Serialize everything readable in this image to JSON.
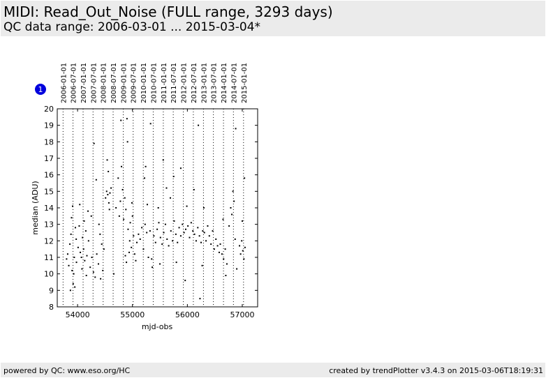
{
  "header": {
    "title": "MIDI: Read_Out_Noise (FULL range, 3293 days)",
    "subtitle": "QC data range: 2006-03-01 ... 2015-03-04*"
  },
  "footer": {
    "left": "powered by QC: www.eso.org/HC",
    "right": "created by trendPlotter v3.4.3 on 2015-03-06T18:19:31"
  },
  "chart_data": {
    "type": "scatter",
    "xlabel": "mjd-obs",
    "ylabel": "median (ADU)",
    "xlim": [
      53630,
      57280
    ],
    "ylim": [
      8,
      20
    ],
    "xticks": [
      54000,
      55000,
      56000,
      57000
    ],
    "yticks": [
      8,
      9,
      10,
      11,
      12,
      13,
      14,
      15,
      16,
      17,
      18,
      19,
      20
    ],
    "marker_badge": "1",
    "date_ticks": [
      {
        "label": "2006-01-01",
        "mjd": 53736
      },
      {
        "label": "2006-07-01",
        "mjd": 53917
      },
      {
        "label": "2007-01-01",
        "mjd": 54101
      },
      {
        "label": "2007-07-01",
        "mjd": 54282
      },
      {
        "label": "2008-01-01",
        "mjd": 54466
      },
      {
        "label": "2008-07-01",
        "mjd": 54648
      },
      {
        "label": "2009-01-01",
        "mjd": 54832
      },
      {
        "label": "2009-07-01",
        "mjd": 55013
      },
      {
        "label": "2010-01-01",
        "mjd": 55197
      },
      {
        "label": "2010-07-01",
        "mjd": 55378
      },
      {
        "label": "2011-01-01",
        "mjd": 55562
      },
      {
        "label": "2011-07-01",
        "mjd": 55743
      },
      {
        "label": "2012-01-01",
        "mjd": 55927
      },
      {
        "label": "2012-07-01",
        "mjd": 56109
      },
      {
        "label": "2013-01-01",
        "mjd": 56293
      },
      {
        "label": "2013-07-01",
        "mjd": 56474
      },
      {
        "label": "2014-01-01",
        "mjd": 56658
      },
      {
        "label": "2014-07-01",
        "mjd": 56839
      },
      {
        "label": "2015-01-01",
        "mjd": 57023
      }
    ],
    "point_color": "#000000",
    "badge_color": "#0000dd",
    "series": [
      {
        "values": [
          [
            53800,
            10.9
          ],
          [
            53820,
            11.2
          ],
          [
            53840,
            10.5
          ],
          [
            53860,
            11.8
          ],
          [
            53880,
            12.4
          ],
          [
            53900,
            10.2
          ],
          [
            53920,
            9.4
          ],
          [
            53940,
            11.0
          ],
          [
            53960,
            12.8
          ],
          [
            53980,
            10.7
          ],
          [
            53870,
            9.0
          ],
          [
            53890,
            13.4
          ],
          [
            53910,
            14.1
          ],
          [
            53930,
            10.0
          ],
          [
            53950,
            9.2
          ],
          [
            53975,
            12.1
          ],
          [
            54010,
            11.6
          ],
          [
            54030,
            12.9
          ],
          [
            54050,
            11.3
          ],
          [
            54070,
            11.0
          ],
          [
            54090,
            12.2
          ],
          [
            54110,
            11.5
          ],
          [
            54130,
            10.8
          ],
          [
            54150,
            12.6
          ],
          [
            54170,
            11.1
          ],
          [
            54190,
            13.8
          ],
          [
            54040,
            14.2
          ],
          [
            54080,
            10.3
          ],
          [
            54120,
            13.2
          ],
          [
            54160,
            9.9
          ],
          [
            54200,
            12.0
          ],
          [
            54230,
            10.4
          ],
          [
            54260,
            11.0
          ],
          [
            54290,
            10.1
          ],
          [
            54320,
            9.8
          ],
          [
            54350,
            11.2
          ],
          [
            54380,
            10.6
          ],
          [
            54410,
            12.4
          ],
          [
            54440,
            11.8
          ],
          [
            54460,
            10.2
          ],
          [
            54480,
            11.5
          ],
          [
            54250,
            13.5
          ],
          [
            54300,
            17.9
          ],
          [
            54340,
            15.7
          ],
          [
            54390,
            13.0
          ],
          [
            54420,
            9.7
          ],
          [
            54510,
            14.6
          ],
          [
            54530,
            15.0
          ],
          [
            54550,
            14.8
          ],
          [
            54570,
            14.3
          ],
          [
            54590,
            14.9
          ],
          [
            54610,
            15.2
          ],
          [
            54540,
            16.9
          ],
          [
            54560,
            16.2
          ],
          [
            54580,
            13.9
          ],
          [
            54660,
            10.0
          ],
          [
            54700,
            14.0
          ],
          [
            54740,
            15.8
          ],
          [
            54760,
            13.5
          ],
          [
            54780,
            14.4
          ],
          [
            54800,
            16.5
          ],
          [
            54820,
            15.1
          ],
          [
            54840,
            13.3
          ],
          [
            54860,
            14.6
          ],
          [
            54880,
            13.9
          ],
          [
            54790,
            19.3
          ],
          [
            54900,
            19.4
          ],
          [
            54920,
            12.7
          ],
          [
            54940,
            11.3
          ],
          [
            54960,
            13.1
          ],
          [
            54980,
            11.6
          ],
          [
            55000,
            13.5
          ],
          [
            55020,
            12.3
          ],
          [
            55040,
            11.2
          ],
          [
            55060,
            10.8
          ],
          [
            54870,
            11.1
          ],
          [
            54890,
            10.7
          ],
          [
            54910,
            18.0
          ],
          [
            54950,
            12.0
          ],
          [
            54990,
            14.3
          ],
          [
            55080,
            11.9
          ],
          [
            55110,
            12.4
          ],
          [
            55140,
            12.1
          ],
          [
            55170,
            12.8
          ],
          [
            55200,
            11.5
          ],
          [
            55230,
            13.0
          ],
          [
            55260,
            12.5
          ],
          [
            55290,
            11.0
          ],
          [
            55320,
            12.6
          ],
          [
            55350,
            10.9
          ],
          [
            55220,
            15.8
          ],
          [
            55240,
            16.5
          ],
          [
            55270,
            14.2
          ],
          [
            55330,
            19.1
          ],
          [
            55360,
            10.4
          ],
          [
            55390,
            12.3
          ],
          [
            55420,
            11.9
          ],
          [
            55450,
            12.7
          ],
          [
            55480,
            13.1
          ],
          [
            55510,
            12.2
          ],
          [
            55540,
            11.8
          ],
          [
            55570,
            12.5
          ],
          [
            55600,
            13.0
          ],
          [
            55630,
            12.1
          ],
          [
            55660,
            11.7
          ],
          [
            55470,
            14.0
          ],
          [
            55500,
            10.6
          ],
          [
            55560,
            16.9
          ],
          [
            55620,
            15.2
          ],
          [
            55690,
            14.6
          ],
          [
            55700,
            12.6
          ],
          [
            55730,
            12.0
          ],
          [
            55760,
            13.2
          ],
          [
            55790,
            12.4
          ],
          [
            55820,
            11.9
          ],
          [
            55850,
            12.8
          ],
          [
            55880,
            12.3
          ],
          [
            55910,
            13.0
          ],
          [
            55940,
            12.5
          ],
          [
            55970,
            12.7
          ],
          [
            55750,
            15.9
          ],
          [
            55800,
            10.7
          ],
          [
            55880,
            16.4
          ],
          [
            55960,
            9.6
          ],
          [
            55990,
            14.1
          ],
          [
            56010,
            12.9
          ],
          [
            56040,
            12.2
          ],
          [
            56070,
            13.1
          ],
          [
            56100,
            12.6
          ],
          [
            56130,
            12.4
          ],
          [
            56160,
            12.0
          ],
          [
            56190,
            12.8
          ],
          [
            56220,
            12.3
          ],
          [
            56250,
            11.9
          ],
          [
            56280,
            12.6
          ],
          [
            56120,
            15.1
          ],
          [
            56200,
            19.0
          ],
          [
            56230,
            8.5
          ],
          [
            56270,
            10.5
          ],
          [
            56300,
            14.0
          ],
          [
            56310,
            12.5
          ],
          [
            56340,
            12.0
          ],
          [
            56370,
            12.9
          ],
          [
            56400,
            12.3
          ],
          [
            56430,
            11.8
          ],
          [
            56460,
            12.6
          ],
          [
            56490,
            11.5
          ],
          [
            56520,
            12.1
          ],
          [
            56550,
            11.7
          ],
          [
            56580,
            11.3
          ],
          [
            56600,
            11.8
          ],
          [
            56630,
            11.2
          ],
          [
            56660,
            10.9
          ],
          [
            56690,
            11.5
          ],
          [
            56720,
            10.6
          ],
          [
            56650,
            13.3
          ],
          [
            56700,
            9.9
          ],
          [
            56760,
            12.9
          ],
          [
            56790,
            14.0
          ],
          [
            56810,
            13.6
          ],
          [
            56830,
            15.0
          ],
          [
            56850,
            14.4
          ],
          [
            56870,
            12.1
          ],
          [
            56900,
            10.3
          ],
          [
            56880,
            18.8
          ],
          [
            56950,
            11.7
          ],
          [
            56970,
            11.2
          ],
          [
            56990,
            12.0
          ],
          [
            57010,
            11.4
          ],
          [
            57030,
            10.9
          ],
          [
            57050,
            11.6
          ],
          [
            57000,
            13.2
          ],
          [
            57040,
            15.8
          ]
        ]
      }
    ]
  }
}
